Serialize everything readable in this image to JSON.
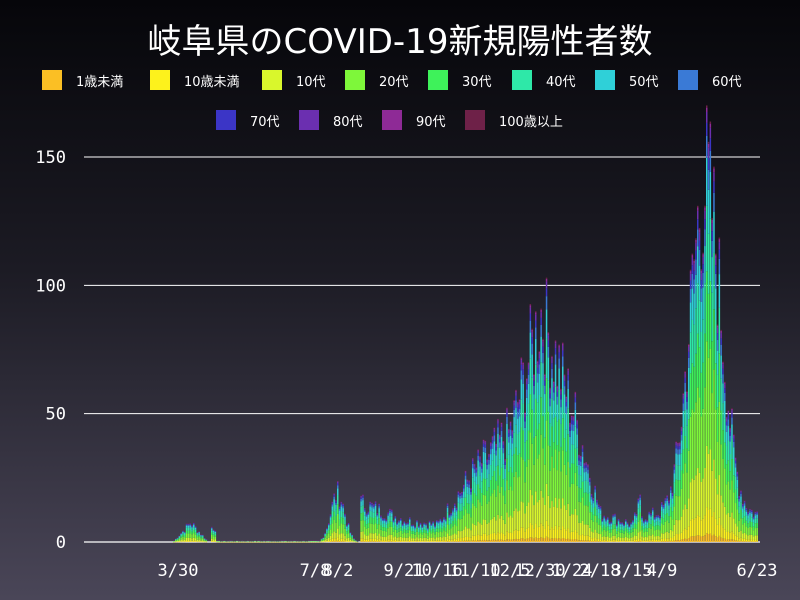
{
  "chart_data": {
    "type": "bar",
    "stacked": true,
    "title": "岐阜県のCOVID-19新規陽性者数",
    "legend_position": "top",
    "grid": true,
    "ylim": [
      0,
      150
    ],
    "yticks": [
      0,
      50,
      100,
      150
    ],
    "xtick_labels": [
      "3/30",
      "7/8",
      "8/2",
      "9/21",
      "10/16",
      "11/10",
      "12/5",
      "12/30",
      "1/24",
      "2/18",
      "3/15",
      "4/9",
      "6/23"
    ],
    "series": [
      {
        "name": "1歳未満",
        "color": "#fbbf24"
      },
      {
        "name": "10歳未満",
        "color": "#fdf21c"
      },
      {
        "name": "10代",
        "color": "#d9f72c"
      },
      {
        "name": "20代",
        "color": "#7ef73a"
      },
      {
        "name": "30代",
        "color": "#3ef25a"
      },
      {
        "name": "40代",
        "color": "#2ee8a8"
      },
      {
        "name": "50代",
        "color": "#2fd0d8"
      },
      {
        "name": "60代",
        "color": "#3a7ad6"
      },
      {
        "name": "70代",
        "color": "#3b35c6"
      },
      {
        "name": "80代",
        "color": "#6b2fb0"
      },
      {
        "name": "90代",
        "color": "#8e2a96"
      },
      {
        "name": "100歳以上",
        "color": "#6e2148"
      }
    ],
    "weekly_totals": [
      {
        "week": "3/30",
        "total": 9
      },
      {
        "week": "7/8",
        "total": 0
      },
      {
        "week": "8/2",
        "total": 22
      },
      {
        "week": "9/21",
        "total": 10
      },
      {
        "week": "10/16",
        "total": 8
      },
      {
        "week": "11/10",
        "total": 33
      },
      {
        "week": "12/5",
        "total": 50
      },
      {
        "week": "12/30",
        "total": 103
      },
      {
        "week": "1/24",
        "total": 60
      },
      {
        "week": "2/18",
        "total": 13
      },
      {
        "week": "3/15",
        "total": 8
      },
      {
        "week": "4/9",
        "total": 50
      },
      {
        "week": "6/23",
        "total": 15
      }
    ]
  }
}
